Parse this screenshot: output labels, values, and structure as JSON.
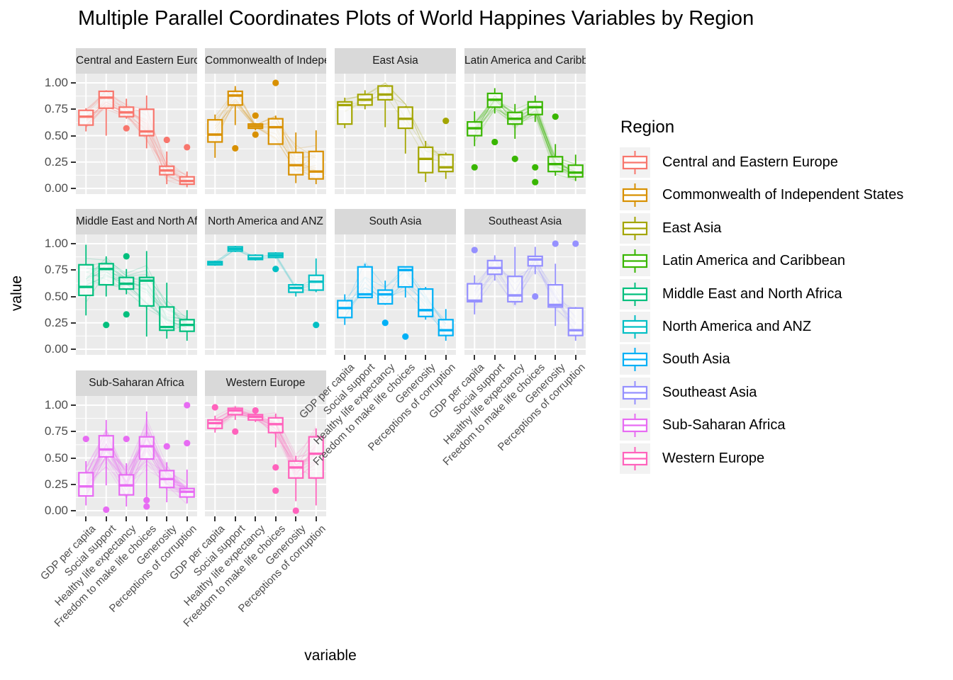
{
  "title": "Multiple Parallel Coordinates Plots of World Happines Variables by Region",
  "axis": {
    "x_title": "variable",
    "y_title": "value",
    "y_ticks": [
      [
        1.0,
        "1.00"
      ],
      [
        0.75,
        "0.75"
      ],
      [
        0.5,
        "0.50"
      ],
      [
        0.25,
        "0.25"
      ],
      [
        0.0,
        "0.00"
      ]
    ]
  },
  "legend": {
    "title": "Region"
  },
  "chart_data": {
    "type": "boxplot",
    "subtype": "faceted-parallel-coordinates-boxplots",
    "facet_by": "Region",
    "grid": "4 columns x 3 rows, 10 facets",
    "ylim": [
      0,
      1
    ],
    "y_major_ticks": [
      0,
      0.25,
      0.5,
      0.75,
      1.0
    ],
    "variables": [
      "GDP per capita",
      "Social support",
      "Healthy life expectancy",
      "Freedom to make life choices",
      "Generosity",
      "Perceptions of corruption"
    ],
    "stats_order": [
      "whisker_low",
      "q1",
      "median",
      "q3",
      "whisker_high"
    ],
    "regions": [
      {
        "name": "Central and Eastern Europe",
        "color": "#F8766D",
        "n_lines": 17,
        "stats": [
          [
            0.54,
            0.6,
            0.68,
            0.74,
            0.76
          ],
          [
            0.5,
            0.76,
            0.86,
            0.92,
            0.93
          ],
          [
            0.66,
            0.68,
            0.72,
            0.77,
            0.85
          ],
          [
            0.38,
            0.5,
            0.54,
            0.75,
            0.88
          ],
          [
            0.04,
            0.13,
            0.17,
            0.21,
            0.35
          ],
          [
            0.01,
            0.04,
            0.07,
            0.11,
            0.16
          ]
        ],
        "outliers": [
          [],
          [],
          [
            0.57
          ],
          [],
          [
            0.46
          ],
          [
            0.39
          ]
        ]
      },
      {
        "name": "Commonwealth of Independent States",
        "color": "#D89000",
        "n_lines": 12,
        "stats": [
          [
            0.29,
            0.44,
            0.51,
            0.65,
            0.7
          ],
          [
            0.6,
            0.79,
            0.88,
            0.92,
            0.97
          ],
          [
            0.55,
            0.57,
            0.59,
            0.61,
            0.62
          ],
          [
            0.42,
            0.42,
            0.58,
            0.66,
            0.69
          ],
          [
            0.05,
            0.13,
            0.22,
            0.34,
            0.53
          ],
          [
            0.04,
            0.09,
            0.16,
            0.35,
            0.55
          ]
        ],
        "outliers": [
          [],
          [
            0.38
          ],
          [
            0.69,
            0.51
          ],
          [
            1.0
          ],
          [],
          []
        ]
      },
      {
        "name": "East Asia",
        "color": "#A3A500",
        "n_lines": 6,
        "stats": [
          [
            0.57,
            0.61,
            0.79,
            0.82,
            0.86
          ],
          [
            0.75,
            0.79,
            0.84,
            0.89,
            0.93
          ],
          [
            0.58,
            0.84,
            0.89,
            0.97,
            0.98
          ],
          [
            0.33,
            0.57,
            0.66,
            0.77,
            0.78
          ],
          [
            0.06,
            0.15,
            0.28,
            0.39,
            0.45
          ],
          [
            0.09,
            0.16,
            0.2,
            0.32,
            0.34
          ]
        ],
        "outliers": [
          [],
          [],
          [],
          [],
          [],
          [
            0.64
          ]
        ]
      },
      {
        "name": "Latin America and Caribbean",
        "color": "#39B600",
        "n_lines": 20,
        "stats": [
          [
            0.4,
            0.5,
            0.57,
            0.63,
            0.73
          ],
          [
            0.71,
            0.77,
            0.84,
            0.9,
            0.95
          ],
          [
            0.47,
            0.61,
            0.66,
            0.72,
            0.8
          ],
          [
            0.63,
            0.7,
            0.77,
            0.82,
            0.88
          ],
          [
            0.12,
            0.16,
            0.23,
            0.3,
            0.42
          ],
          [
            0.07,
            0.11,
            0.15,
            0.22,
            0.32
          ]
        ],
        "outliers": [
          [
            0.2
          ],
          [
            0.44
          ],
          [
            0.28
          ],
          [
            0.2,
            0.06
          ],
          [
            0.68
          ],
          []
        ]
      },
      {
        "name": "Middle East and North Africa",
        "color": "#00BF7D",
        "n_lines": 17,
        "stats": [
          [
            0.32,
            0.51,
            0.59,
            0.8,
            0.99
          ],
          [
            0.5,
            0.61,
            0.76,
            0.81,
            0.88
          ],
          [
            0.52,
            0.57,
            0.62,
            0.68,
            0.76
          ],
          [
            0.12,
            0.41,
            0.65,
            0.68,
            0.93
          ],
          [
            0.1,
            0.18,
            0.21,
            0.4,
            0.63
          ],
          [
            0.08,
            0.17,
            0.23,
            0.28,
            0.37
          ]
        ],
        "outliers": [
          [],
          [
            0.23
          ],
          [
            0.88,
            0.33
          ],
          [],
          [],
          []
        ]
      },
      {
        "name": "North America and ANZ",
        "color": "#00BFC4",
        "n_lines": 4,
        "stats": [
          [
            0.79,
            0.8,
            0.82,
            0.83,
            0.84
          ],
          [
            0.92,
            0.93,
            0.95,
            0.97,
            0.98
          ],
          [
            0.84,
            0.85,
            0.86,
            0.89,
            0.9
          ],
          [
            0.86,
            0.87,
            0.89,
            0.91,
            0.92
          ],
          [
            0.5,
            0.54,
            0.58,
            0.61,
            0.62
          ],
          [
            0.54,
            0.56,
            0.64,
            0.7,
            0.86
          ]
        ],
        "outliers": [
          [],
          [],
          [],
          [
            0.76
          ],
          [],
          [
            0.23
          ]
        ]
      },
      {
        "name": "South Asia",
        "color": "#00B0F6",
        "n_lines": 7,
        "stats": [
          [
            0.23,
            0.3,
            0.39,
            0.46,
            0.52
          ],
          [
            0.49,
            0.49,
            0.52,
            0.78,
            0.81
          ],
          [
            0.42,
            0.43,
            0.52,
            0.56,
            0.65
          ],
          [
            0.49,
            0.59,
            0.75,
            0.78,
            0.78
          ],
          [
            0.28,
            0.31,
            0.37,
            0.57,
            0.59
          ],
          [
            0.08,
            0.13,
            0.18,
            0.28,
            0.38
          ]
        ],
        "outliers": [
          [],
          [],
          [
            0.25
          ],
          [
            0.12
          ],
          [],
          []
        ]
      },
      {
        "name": "Southeast Asia",
        "color": "#9590FF",
        "n_lines": 9,
        "stats": [
          [
            0.33,
            0.45,
            0.46,
            0.62,
            0.7
          ],
          [
            0.65,
            0.71,
            0.77,
            0.84,
            0.89
          ],
          [
            0.42,
            0.45,
            0.51,
            0.69,
            0.97
          ],
          [
            0.71,
            0.79,
            0.85,
            0.88,
            0.97
          ],
          [
            0.22,
            0.4,
            0.42,
            0.61,
            0.81
          ],
          [
            0.08,
            0.13,
            0.18,
            0.39,
            0.4
          ]
        ],
        "outliers": [
          [
            0.94
          ],
          [],
          [],
          [
            0.5
          ],
          [
            1.0
          ],
          [
            1.0
          ]
        ]
      },
      {
        "name": "Sub-Saharan Africa",
        "color": "#E76BF3",
        "n_lines": 36,
        "stats": [
          [
            0.05,
            0.14,
            0.23,
            0.36,
            0.47
          ],
          [
            0.24,
            0.51,
            0.58,
            0.71,
            0.86
          ],
          [
            0.04,
            0.15,
            0.24,
            0.34,
            0.45
          ],
          [
            0.13,
            0.49,
            0.61,
            0.7,
            0.94
          ],
          [
            0.08,
            0.22,
            0.3,
            0.38,
            0.46
          ],
          [
            0.07,
            0.13,
            0.18,
            0.21,
            0.39
          ]
        ],
        "outliers": [
          [
            0.68
          ],
          [
            0.01
          ],
          [
            0.68
          ],
          [
            0.1,
            0.04
          ],
          [
            0.61
          ],
          [
            1.0,
            0.64
          ]
        ]
      },
      {
        "name": "Western Europe",
        "color": "#FF62BC",
        "n_lines": 21,
        "stats": [
          [
            0.74,
            0.78,
            0.83,
            0.86,
            0.9
          ],
          [
            0.86,
            0.91,
            0.95,
            0.97,
            0.99
          ],
          [
            0.84,
            0.86,
            0.89,
            0.91,
            0.93
          ],
          [
            0.6,
            0.74,
            0.82,
            0.88,
            0.92
          ],
          [
            0.09,
            0.31,
            0.41,
            0.47,
            0.52
          ],
          [
            0.05,
            0.31,
            0.54,
            0.7,
            0.78
          ]
        ],
        "outliers": [
          [
            0.98
          ],
          [
            0.75
          ],
          [
            0.95
          ],
          [
            0.41,
            0.19
          ],
          [
            0.0
          ],
          []
        ]
      }
    ],
    "style": {
      "panel_background": "#EBEBEB",
      "strip_background": "#D9D9D9",
      "gridline_color": "#FFFFFF",
      "tick_text_color": "#4D4D4D",
      "box_fill": "#FFFFFF",
      "line_alpha": 0.18
    }
  }
}
